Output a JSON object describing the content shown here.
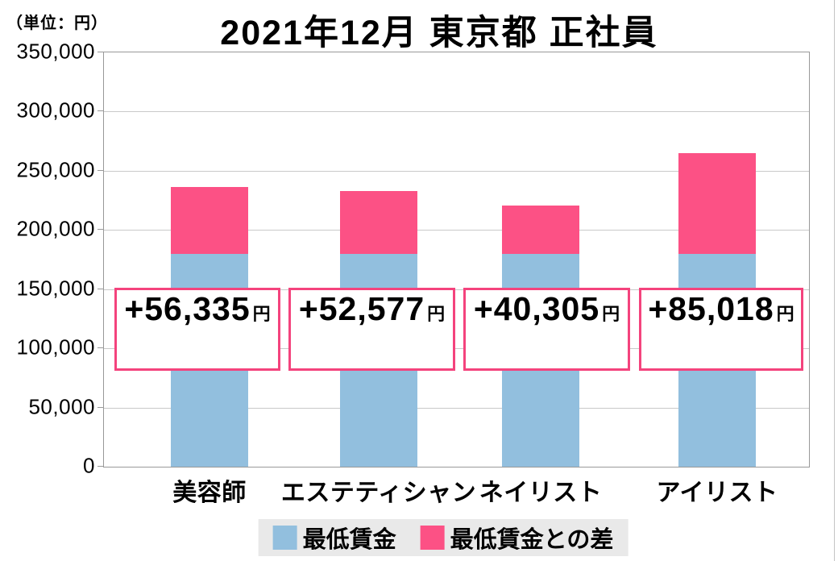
{
  "unit_label": "（単位：円）",
  "title": "2021年12月 東京都 正社員",
  "chart_data": {
    "type": "bar",
    "stacked": true,
    "title": "2021年12月 東京都 正社員",
    "unit_label": "（単位：円）",
    "categories": [
      "美容師",
      "エステティシャン",
      "ネイリスト",
      "アイリスト"
    ],
    "series": [
      {
        "name": "最低賃金",
        "color": "#92bfde",
        "values": [
          180000,
          180000,
          180000,
          180000
        ],
        "note": "base level estimated from axis gridlines (not labeled on chart)"
      },
      {
        "name": "最低賃金との差",
        "color": "#fc5185",
        "values": [
          56335,
          52577,
          40305,
          85018
        ]
      }
    ],
    "totals_estimated": [
      236335,
      232577,
      220305,
      265018
    ],
    "bar_value_labels": [
      "+56,335",
      "+52,577",
      "+40,305",
      "+85,018"
    ],
    "value_label_suffix": "円",
    "ylim": [
      0,
      350000
    ],
    "ytick_interval": 50000,
    "ytick_labels": [
      "350,000",
      "300,000",
      "250,000",
      "200,000",
      "150,000",
      "100,000",
      "50,000",
      "0"
    ],
    "grid": true,
    "legend_position": "bottom",
    "colors": {
      "min_wage_blue": "#92bfde",
      "difference_pink": "#fc5185",
      "label_box_border": "#f4437d",
      "legend_background": "#e9e9e9",
      "gridline": "#c9c9c9"
    }
  },
  "legend": {
    "items": [
      {
        "label": "最低賃金",
        "color": "#92bfde"
      },
      {
        "label": "最低賃金との差",
        "color": "#fc5185"
      }
    ]
  }
}
